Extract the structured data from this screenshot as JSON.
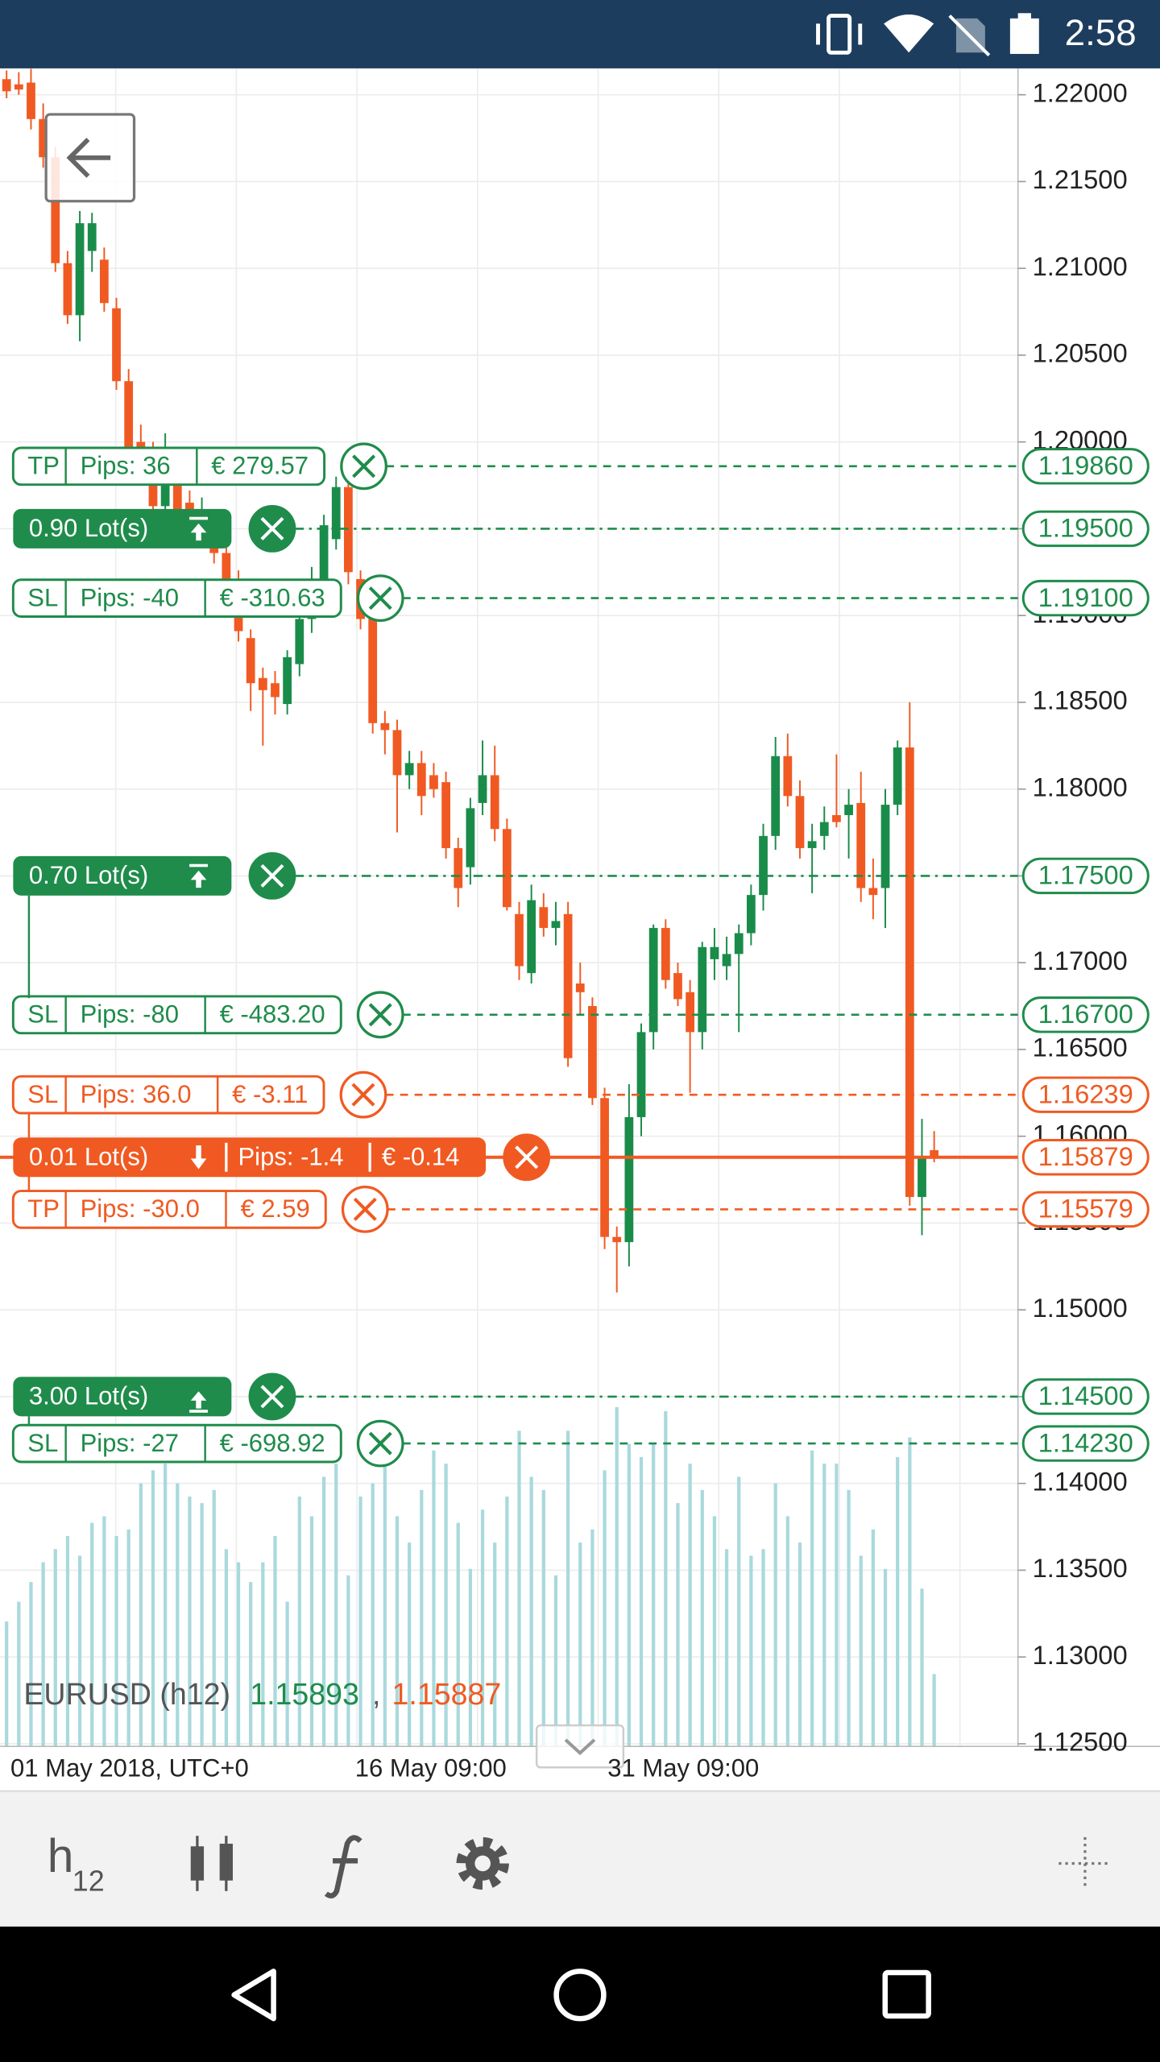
{
  "status_bar": {
    "time": "2:58"
  },
  "chart_data": {
    "type": "candlestick",
    "symbol": "EURUSD (h12)",
    "bid": "1.15893",
    "separator": ",",
    "ask": "1.15887",
    "bid_color": "#1f8c4b",
    "ask_color": "#f05a22",
    "up_color": "#1a8c4a",
    "down_color": "#f05a22",
    "volume_color": "#a9d9dd",
    "x_labels": [
      "01 May 2018, UTC+0",
      "16 May 09:00",
      "31 May 09:00"
    ],
    "ylim": [
      1.12485,
      1.22152
    ],
    "yticks": [
      {
        "value": 1.125,
        "label": "1.12500"
      },
      {
        "value": 1.13,
        "label": "1.13000"
      },
      {
        "value": 1.135,
        "label": "1.13500"
      },
      {
        "value": 1.14,
        "label": "1.14000"
      },
      {
        "value": 1.145,
        "label": "1.14500"
      },
      {
        "value": 1.15,
        "label": "1.15000"
      },
      {
        "value": 1.155,
        "label": "1.15500"
      },
      {
        "value": 1.16,
        "label": "1.16000"
      },
      {
        "value": 1.165,
        "label": "1.16500"
      },
      {
        "value": 1.17,
        "label": "1.17000"
      },
      {
        "value": 1.175,
        "label": "1.17500"
      },
      {
        "value": 1.18,
        "label": "1.18000"
      },
      {
        "value": 1.185,
        "label": "1.18500"
      },
      {
        "value": 1.19,
        "label": "1.19000"
      },
      {
        "value": 1.195,
        "label": "1.19500"
      },
      {
        "value": 1.2,
        "label": "1.20000"
      },
      {
        "value": 1.205,
        "label": "1.20500"
      },
      {
        "value": 1.21,
        "label": "1.21000"
      },
      {
        "value": 1.215,
        "label": "1.21500"
      },
      {
        "value": 1.22,
        "label": "1.22000"
      }
    ],
    "grid": true,
    "ohlc": [
      [
        1.2209,
        1.2214,
        1.2198,
        1.2202
      ],
      [
        1.2206,
        1.2213,
        1.22,
        1.2203
      ],
      [
        1.2207,
        1.2215,
        1.218,
        1.2186
      ],
      [
        1.2186,
        1.2195,
        1.2158,
        1.2164
      ],
      [
        1.2164,
        1.217,
        1.2098,
        1.2103
      ],
      [
        1.2103,
        1.211,
        1.2068,
        1.2073
      ],
      [
        1.2073,
        1.2133,
        1.2058,
        1.2126
      ],
      [
        1.211,
        1.2132,
        1.2098,
        1.2126
      ],
      [
        1.2105,
        1.2112,
        1.2075,
        1.208
      ],
      [
        1.2077,
        1.2083,
        1.203,
        1.2035
      ],
      [
        1.2035,
        1.2042,
        1.199,
        1.1997
      ],
      [
        1.2,
        1.201,
        1.198,
        1.1985
      ],
      [
        1.199,
        1.2,
        1.1955,
        1.1963
      ],
      [
        1.1963,
        1.2005,
        1.1955,
        1.199
      ],
      [
        1.1975,
        1.1985,
        1.1952,
        1.1959
      ],
      [
        1.1965,
        1.1972,
        1.1948,
        1.1955
      ],
      [
        1.195,
        1.1968,
        1.194,
        1.196
      ],
      [
        1.1952,
        1.1958,
        1.193,
        1.1936
      ],
      [
        1.1936,
        1.1942,
        1.1915,
        1.1921
      ],
      [
        1.1921,
        1.1926,
        1.1885,
        1.1891
      ],
      [
        1.1887,
        1.1892,
        1.1845,
        1.1861
      ],
      [
        1.1864,
        1.187,
        1.1825,
        1.1857
      ],
      [
        1.1861,
        1.1868,
        1.1843,
        1.1853
      ],
      [
        1.1849,
        1.188,
        1.1843,
        1.1876
      ],
      [
        1.1872,
        1.1905,
        1.1865,
        1.1898
      ],
      [
        1.1898,
        1.1928,
        1.189,
        1.1921
      ],
      [
        1.1921,
        1.1958,
        1.1915,
        1.1952
      ],
      [
        1.1944,
        1.198,
        1.1938,
        1.1974
      ],
      [
        1.1974,
        1.1982,
        1.1918,
        1.1925
      ],
      [
        1.1921,
        1.1926,
        1.1892,
        1.1898
      ],
      [
        1.1917,
        1.1922,
        1.1832,
        1.1838
      ],
      [
        1.1838,
        1.1845,
        1.182,
        1.1834
      ],
      [
        1.1834,
        1.184,
        1.1775,
        1.1808
      ],
      [
        1.1808,
        1.1822,
        1.18,
        1.1815
      ],
      [
        1.1815,
        1.1822,
        1.1785,
        1.1796
      ],
      [
        1.1808,
        1.1815,
        1.1795,
        1.18
      ],
      [
        1.1804,
        1.181,
        1.176,
        1.1766
      ],
      [
        1.1766,
        1.1772,
        1.1732,
        1.1743
      ],
      [
        1.1755,
        1.1795,
        1.1745,
        1.1789
      ],
      [
        1.1792,
        1.1828,
        1.1785,
        1.1808
      ],
      [
        1.1808,
        1.1825,
        1.177,
        1.1777
      ],
      [
        1.1777,
        1.1783,
        1.173,
        1.1732
      ],
      [
        1.1728,
        1.1735,
        1.169,
        1.1698
      ],
      [
        1.1694,
        1.1745,
        1.1688,
        1.1736
      ],
      [
        1.1732,
        1.174,
        1.1715,
        1.172
      ],
      [
        1.172,
        1.1735,
        1.171,
        1.1724
      ],
      [
        1.1728,
        1.1735,
        1.164,
        1.1645
      ],
      [
        1.1688,
        1.17,
        1.167,
        1.1683
      ],
      [
        1.1675,
        1.168,
        1.1618,
        1.1622
      ],
      [
        1.1622,
        1.1628,
        1.1535,
        1.1542
      ],
      [
        1.1542,
        1.1548,
        1.151,
        1.1539
      ],
      [
        1.1539,
        1.163,
        1.1525,
        1.1611
      ],
      [
        1.1611,
        1.1665,
        1.16,
        1.166
      ],
      [
        1.166,
        1.1722,
        1.165,
        1.172
      ],
      [
        1.172,
        1.1725,
        1.1685,
        1.169
      ],
      [
        1.1694,
        1.17,
        1.1675,
        1.1679
      ],
      [
        1.1683,
        1.169,
        1.1625,
        1.166
      ],
      [
        1.166,
        1.1712,
        1.165,
        1.1709
      ],
      [
        1.1702,
        1.172,
        1.169,
        1.1709
      ],
      [
        1.1698,
        1.1715,
        1.169,
        1.1705
      ],
      [
        1.1705,
        1.1722,
        1.166,
        1.1717
      ],
      [
        1.1717,
        1.1745,
        1.171,
        1.1739
      ],
      [
        1.1739,
        1.178,
        1.173,
        1.1773
      ],
      [
        1.1773,
        1.183,
        1.1765,
        1.1819
      ],
      [
        1.1819,
        1.1832,
        1.179,
        1.1796
      ],
      [
        1.1796,
        1.1805,
        1.176,
        1.1766
      ],
      [
        1.1766,
        1.178,
        1.174,
        1.177
      ],
      [
        1.1773,
        1.179,
        1.1765,
        1.1781
      ],
      [
        1.1785,
        1.182,
        1.1778,
        1.1781
      ],
      [
        1.1785,
        1.18,
        1.176,
        1.1791
      ],
      [
        1.1792,
        1.181,
        1.1735,
        1.1743
      ],
      [
        1.1743,
        1.176,
        1.1725,
        1.1739
      ],
      [
        1.1743,
        1.18,
        1.172,
        1.1791
      ],
      [
        1.1791,
        1.1828,
        1.1785,
        1.1824
      ],
      [
        1.1824,
        1.185,
        1.156,
        1.1565
      ],
      [
        1.1565,
        1.161,
        1.1543,
        1.1588
      ],
      [
        1.1592,
        1.1603,
        1.1585,
        1.1588
      ]
    ],
    "volume": [
      95,
      110,
      125,
      140,
      150,
      160,
      145,
      170,
      175,
      160,
      165,
      200,
      210,
      215,
      200,
      190,
      185,
      195,
      150,
      140,
      125,
      140,
      160,
      110,
      190,
      175,
      205,
      215,
      130,
      190,
      200,
      220,
      175,
      155,
      195,
      225,
      215,
      170,
      135,
      180,
      155,
      190,
      240,
      205,
      195,
      130,
      240,
      155,
      165,
      210,
      258,
      230,
      220,
      230,
      255,
      185,
      215,
      195,
      175,
      150,
      205,
      145,
      150,
      200,
      175,
      155,
      225,
      215,
      215,
      195,
      145,
      165,
      135,
      220,
      235,
      120,
      55
    ],
    "orders": [
      {
        "kind": "tp",
        "tag": "TP",
        "pips": "Pips: 36",
        "pnl": "€ 279.57",
        "price": {
          "value": 1.1986,
          "label": "1.19860"
        },
        "color": "#1f8c4b"
      },
      {
        "kind": "position",
        "lots": "0.90 Lot(s)",
        "icon": "up-bar-top",
        "price": {
          "value": 1.195,
          "label": "1.19500"
        },
        "color": "#1f8c4b"
      },
      {
        "kind": "sl",
        "tag": "SL",
        "pips": "Pips: -40",
        "pnl": "€ -310.63",
        "price": {
          "value": 1.191,
          "label": "1.19100"
        },
        "color": "#1f8c4b"
      },
      {
        "kind": "position",
        "lots": "0.70 Lot(s)",
        "icon": "up-bar-top",
        "price": {
          "value": 1.175,
          "label": "1.17500"
        },
        "color": "#1f8c4b"
      },
      {
        "kind": "sl",
        "tag": "SL",
        "pips": "Pips: -80",
        "pnl": "€ -483.20",
        "price": {
          "value": 1.167,
          "label": "1.16700"
        },
        "color": "#1f8c4b"
      },
      {
        "kind": "sl",
        "tag": "SL",
        "pips": "Pips: 36.0",
        "pnl": "€ -3.11",
        "price": {
          "value": 1.16239,
          "label": "1.16239"
        },
        "color": "#f05a22"
      },
      {
        "kind": "position",
        "lots": "0.01 Lot(s)",
        "icon": "down",
        "pips": "Pips: -1.4",
        "pnl": "€ -0.14",
        "price": {
          "value": 1.15879,
          "label": "1.15879"
        },
        "color": "#f05a22"
      },
      {
        "kind": "tp",
        "tag": "TP",
        "pips": "Pips: -30.0",
        "pnl": "€ 2.59",
        "price": {
          "value": 1.15579,
          "label": "1.15579"
        },
        "color": "#f05a22"
      },
      {
        "kind": "position",
        "lots": "3.00 Lot(s)",
        "icon": "up-bar-bottom",
        "price": {
          "value": 1.145,
          "label": "1.14500"
        },
        "color": "#1f8c4b"
      },
      {
        "kind": "sl",
        "tag": "SL",
        "pips": "Pips: -27",
        "pnl": "€ -698.92",
        "price": {
          "value": 1.1423,
          "label": "1.14230"
        },
        "color": "#1f8c4b"
      }
    ]
  },
  "toolbar": {
    "timeframe": "h",
    "timeframe_sub": "12"
  }
}
